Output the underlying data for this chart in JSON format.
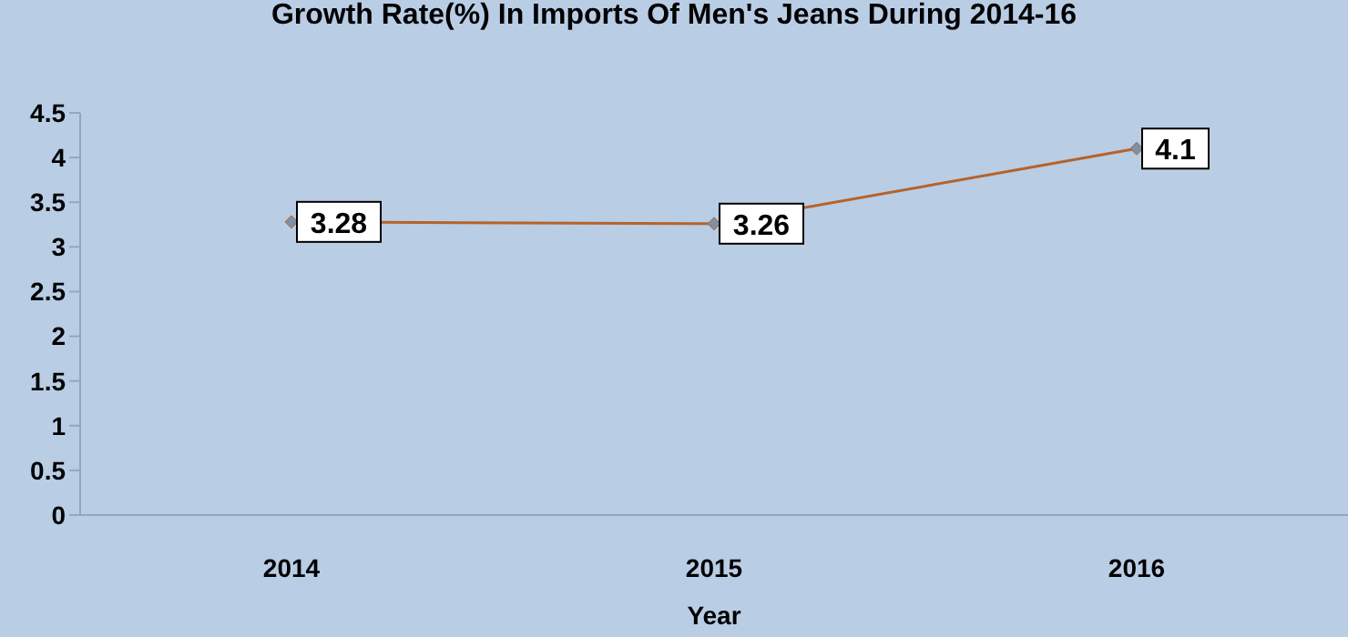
{
  "chart_data": {
    "type": "line",
    "title": "Growth Rate(%) In Imports Of Men's Jeans During 2014-16",
    "xlabel": "Year",
    "categories": [
      "2014",
      "2015",
      "2016"
    ],
    "series": [
      {
        "color": "#b5632a",
        "values": [
          3.28,
          3.26,
          4.1
        ]
      }
    ],
    "ylim": [
      0,
      4.5
    ],
    "yticks": [
      0,
      0.5,
      1,
      1.5,
      2,
      2.5,
      3,
      3.5,
      4,
      4.5
    ],
    "marker": "diamond",
    "data_labels": true
  }
}
